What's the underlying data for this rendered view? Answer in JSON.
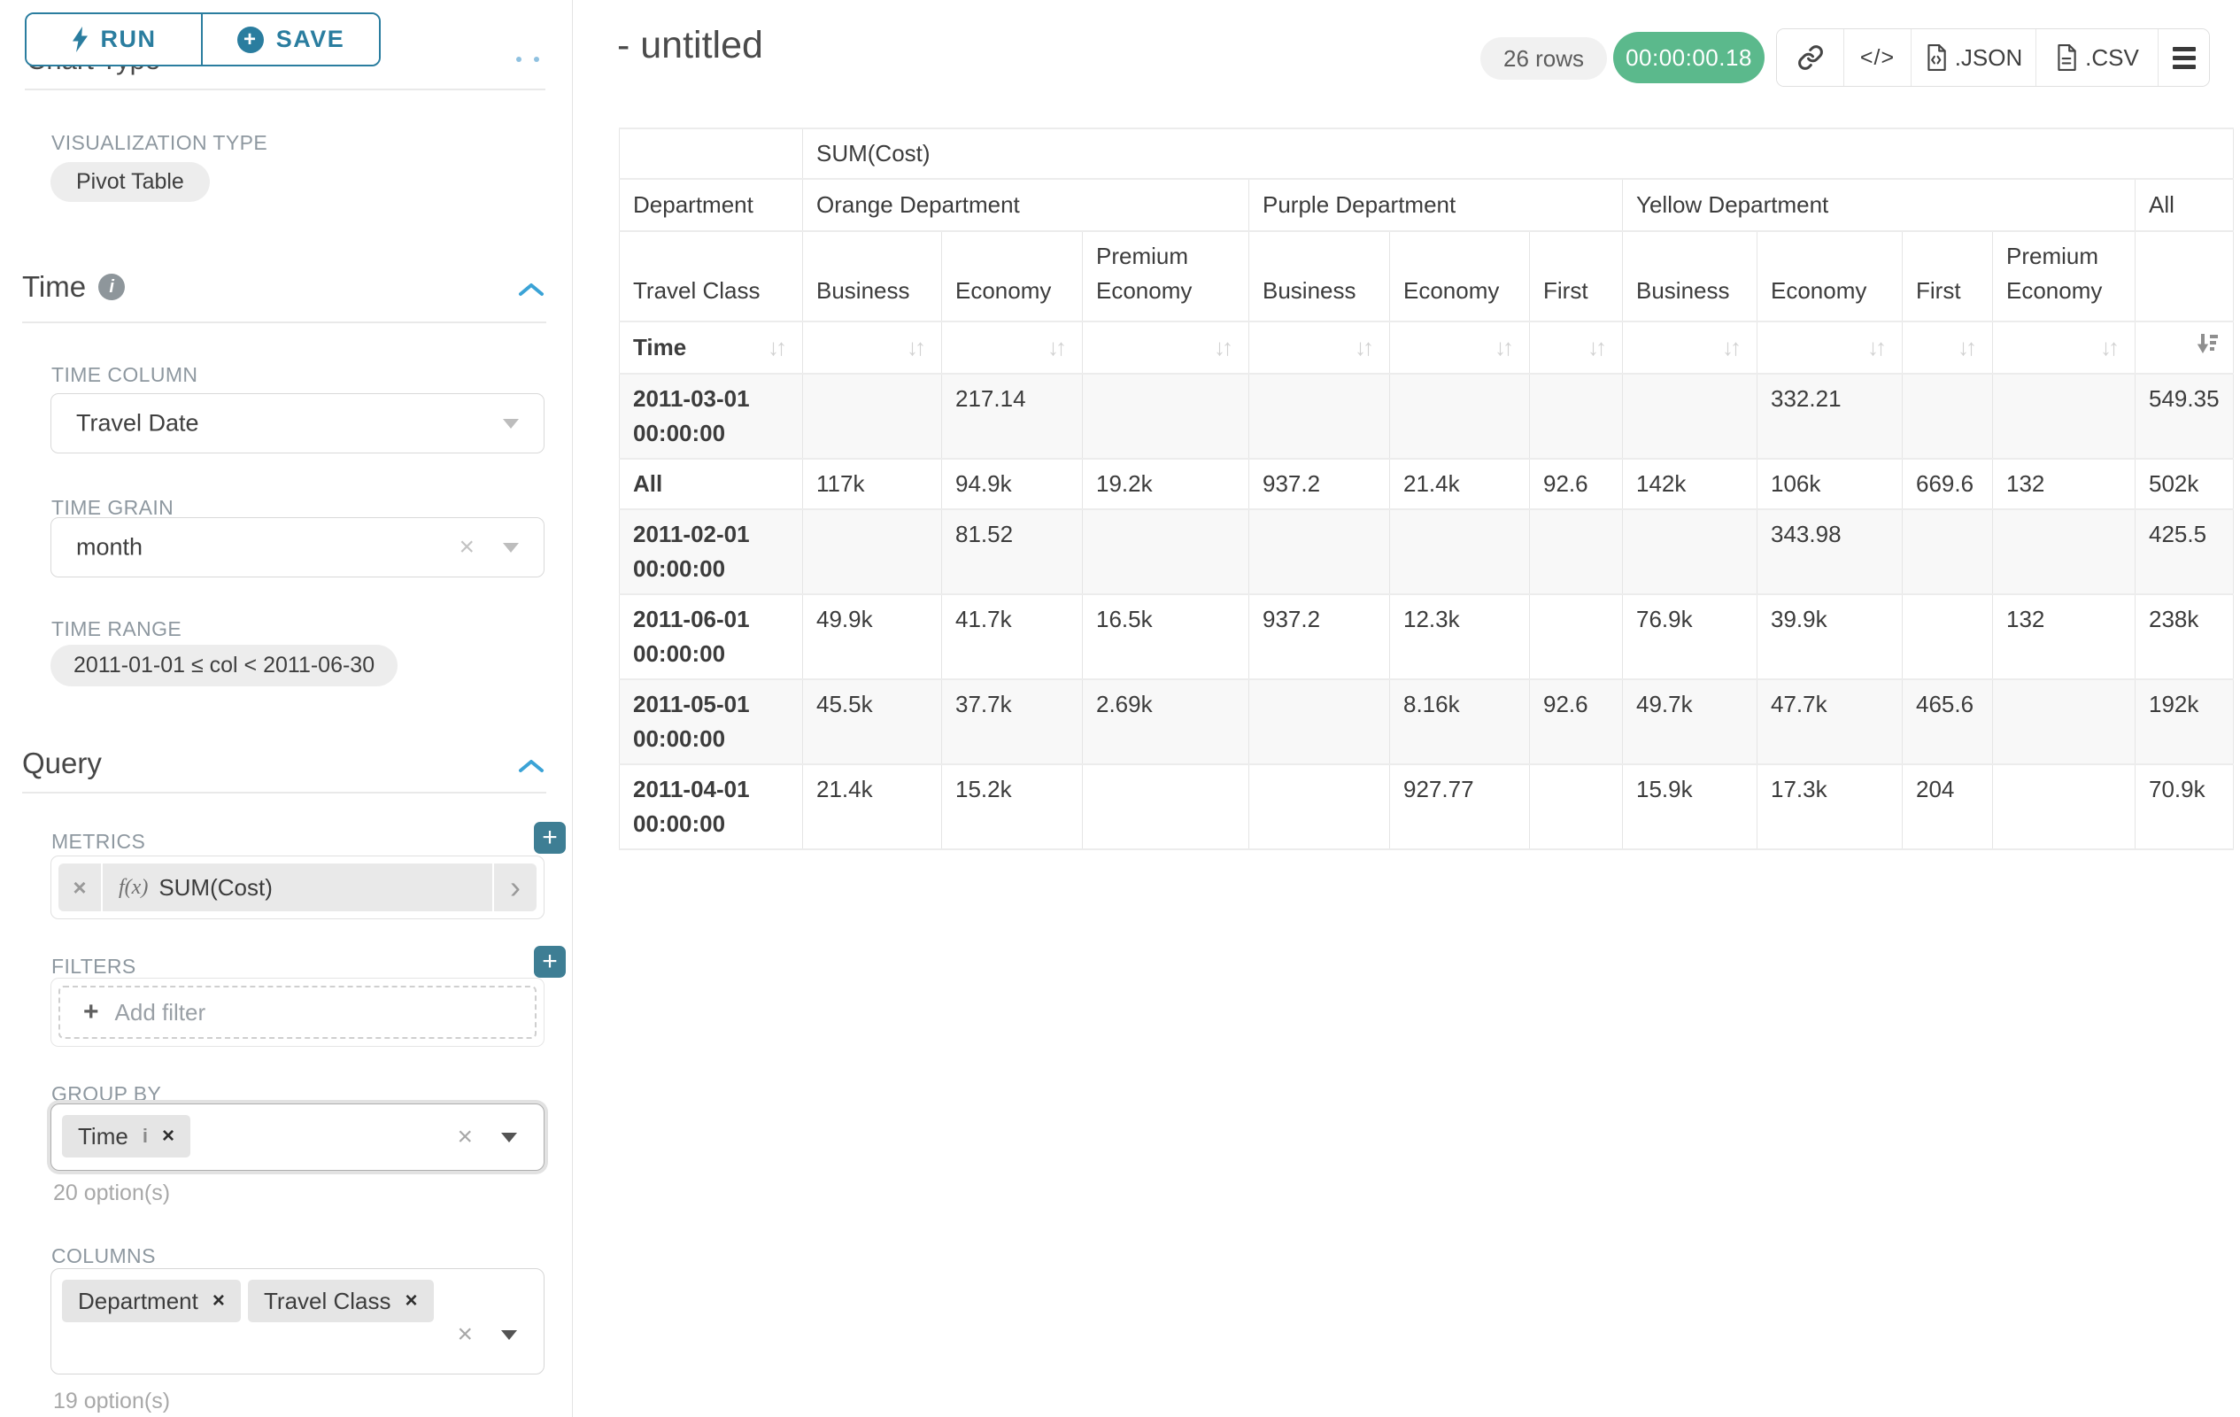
{
  "sidebar": {
    "run": "RUN",
    "save": "SAVE",
    "section_chart_type": "Chart Type",
    "viz_type_label": "VISUALIZATION TYPE",
    "viz_type_value": "Pivot Table",
    "time_title": "Time",
    "time_column_label": "TIME COLUMN",
    "time_column_value": "Travel Date",
    "time_grain_label": "TIME GRAIN",
    "time_grain_value": "month",
    "time_range_label": "TIME RANGE",
    "time_range_value": "2011-01-01 ≤ col < 2011-06-30",
    "query_title": "Query",
    "metrics_label": "METRICS",
    "metric_fx": "f(x)",
    "metric_value": "SUM(Cost)",
    "filters_label": "FILTERS",
    "add_filter_label": "Add filter",
    "group_by_label": "GROUP BY",
    "group_by_tags": [
      {
        "label": "Time",
        "has_info": true
      }
    ],
    "group_by_options": "20 option(s)",
    "columns_label": "COLUMNS",
    "columns_tags": [
      {
        "label": "Department"
      },
      {
        "label": "Travel Class"
      }
    ],
    "columns_options": "19 option(s)"
  },
  "header": {
    "title": "- untitled",
    "row_count": "26 rows",
    "timer": "00:00:00.18",
    "export_json": ".JSON",
    "export_csv": ".CSV"
  },
  "chart_data": {
    "type": "table",
    "title": "SUM(Cost)",
    "corner_rows": [
      "Department",
      "Travel Class",
      "Time"
    ],
    "column_groups": [
      {
        "label": "Orange Department",
        "columns": [
          "Business",
          "Economy",
          "Premium Economy"
        ]
      },
      {
        "label": "Purple Department",
        "columns": [
          "Business",
          "Economy",
          "First"
        ]
      },
      {
        "label": "Yellow Department",
        "columns": [
          "Business",
          "Economy",
          "First",
          "Premium Economy"
        ]
      },
      {
        "label": "All",
        "columns": [
          ""
        ]
      }
    ],
    "rows": [
      {
        "label": "2011-03-01 00:00:00",
        "values": [
          "",
          "217.14",
          "",
          "",
          "",
          "",
          "",
          "332.21",
          "",
          "",
          "549.35"
        ]
      },
      {
        "label": "All",
        "values": [
          "117k",
          "94.9k",
          "19.2k",
          "937.2",
          "21.4k",
          "92.6",
          "142k",
          "106k",
          "669.6",
          "132",
          "502k"
        ]
      },
      {
        "label": "2011-02-01 00:00:00",
        "values": [
          "",
          "81.52",
          "",
          "",
          "",
          "",
          "",
          "343.98",
          "",
          "",
          "425.5"
        ]
      },
      {
        "label": "2011-06-01 00:00:00",
        "values": [
          "49.9k",
          "41.7k",
          "16.5k",
          "937.2",
          "12.3k",
          "",
          "76.9k",
          "39.9k",
          "",
          "132",
          "238k"
        ]
      },
      {
        "label": "2011-05-01 00:00:00",
        "values": [
          "45.5k",
          "37.7k",
          "2.69k",
          "",
          "8.16k",
          "92.6",
          "49.7k",
          "47.7k",
          "465.6",
          "",
          "192k"
        ]
      },
      {
        "label": "2011-04-01 00:00:00",
        "values": [
          "21.4k",
          "15.2k",
          "",
          "",
          "927.77",
          "",
          "15.9k",
          "17.3k",
          "204",
          "",
          "70.9k"
        ]
      }
    ],
    "sorted_column": "All",
    "sort_direction": "desc",
    "colors": {
      "accent_teal": "#2a7d9f",
      "plus_teal": "#3e7e94",
      "timer_green": "#5bb98c"
    }
  }
}
